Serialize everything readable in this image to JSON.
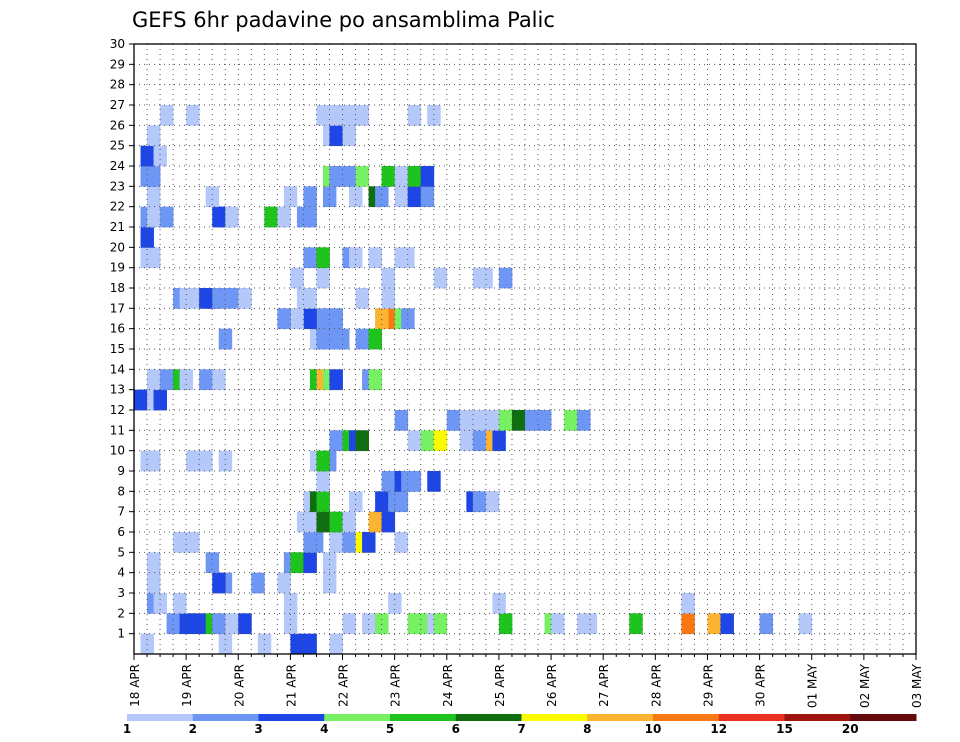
{
  "chart_data": {
    "type": "heatmap",
    "title": "GEFS 6hr padavine po ansamblima Palic",
    "x_tick_labels": [
      "18 APR",
      "19 APR",
      "20 APR",
      "21 APR",
      "22 APR",
      "23 APR",
      "24 APR",
      "25 APR",
      "26 APR",
      "27 APR",
      "28 APR",
      "29 APR",
      "30 APR",
      "01 MAY",
      "02 MAY",
      "03 MAY"
    ],
    "y_tick_labels": [
      "1",
      "2",
      "3",
      "4",
      "5",
      "6",
      "7",
      "8",
      "9",
      "10",
      "11",
      "12",
      "13",
      "14",
      "15",
      "16",
      "17",
      "18",
      "19",
      "20",
      "21",
      "22",
      "23",
      "24",
      "25",
      "26",
      "27",
      "28",
      "29",
      "30"
    ],
    "x_steps_per_label": 4,
    "y_range": [
      0,
      30
    ],
    "grid": true,
    "colorbar": {
      "labels": [
        "1",
        "2",
        "3",
        "4",
        "5",
        "6",
        "7",
        "8",
        "10",
        "12",
        "15",
        "20"
      ],
      "colors": [
        "#b4c8fa",
        "#6e96f5",
        "#1e46e6",
        "#78f064",
        "#1ec31e",
        "#0f6e0f",
        "#fafa00",
        "#fab432",
        "#fa7814",
        "#e6321e",
        "#a0140f",
        "#640a0a"
      ]
    },
    "cells": [
      [
        0.5,
        0,
        1
      ],
      [
        6.5,
        0,
        1
      ],
      [
        9.5,
        0,
        1
      ],
      [
        12,
        0,
        3
      ],
      [
        13,
        0,
        3
      ],
      [
        15,
        0,
        1
      ],
      [
        2.5,
        1,
        2
      ],
      [
        3.5,
        1,
        3
      ],
      [
        4.5,
        1,
        3
      ],
      [
        5.5,
        1,
        5
      ],
      [
        6,
        1,
        2
      ],
      [
        7,
        1,
        1
      ],
      [
        8,
        1,
        3
      ],
      [
        11.5,
        1,
        1
      ],
      [
        16,
        1,
        1
      ],
      [
        17.5,
        1,
        1
      ],
      [
        18.5,
        1,
        4
      ],
      [
        21,
        1,
        4
      ],
      [
        21.5,
        1,
        4
      ],
      [
        22,
        1,
        4
      ],
      [
        22.5,
        1,
        1
      ],
      [
        23,
        1,
        4
      ],
      [
        28,
        1,
        5
      ],
      [
        31.5,
        1,
        4
      ],
      [
        32,
        1,
        1
      ],
      [
        34,
        1,
        1
      ],
      [
        34.5,
        1,
        1
      ],
      [
        38,
        1,
        5
      ],
      [
        42,
        1,
        9
      ],
      [
        44,
        1,
        8
      ],
      [
        45,
        1,
        3
      ],
      [
        48,
        1,
        2
      ],
      [
        51,
        1,
        1
      ],
      [
        1,
        2,
        2
      ],
      [
        1.5,
        2,
        1
      ],
      [
        3,
        2,
        1
      ],
      [
        11.5,
        2,
        1
      ],
      [
        19.5,
        2,
        1
      ],
      [
        27.5,
        2,
        1
      ],
      [
        42,
        2,
        1
      ],
      [
        1,
        3,
        1
      ],
      [
        6.5,
        3,
        2
      ],
      [
        6,
        3,
        3
      ],
      [
        9,
        3,
        2
      ],
      [
        11,
        3,
        1
      ],
      [
        14.5,
        3,
        1
      ],
      [
        1,
        4,
        1
      ],
      [
        5.5,
        4,
        2
      ],
      [
        11.5,
        4,
        2
      ],
      [
        12,
        4,
        5
      ],
      [
        13,
        4,
        3
      ],
      [
        14.5,
        4,
        1
      ],
      [
        3,
        5,
        1
      ],
      [
        4,
        5,
        1
      ],
      [
        13,
        5,
        2
      ],
      [
        13.5,
        5,
        2
      ],
      [
        15,
        5,
        1
      ],
      [
        16,
        5,
        2
      ],
      [
        17,
        5,
        7
      ],
      [
        17.5,
        5,
        3
      ],
      [
        20,
        5,
        1
      ],
      [
        12.5,
        6,
        1
      ],
      [
        13.5,
        6,
        1
      ],
      [
        14,
        6,
        6
      ],
      [
        15,
        6,
        5
      ],
      [
        16,
        6,
        1
      ],
      [
        18,
        6,
        8
      ],
      [
        19,
        6,
        3
      ],
      [
        13,
        7,
        1
      ],
      [
        13.5,
        7,
        6
      ],
      [
        14,
        7,
        5
      ],
      [
        16.5,
        7,
        1
      ],
      [
        18.5,
        7,
        3
      ],
      [
        19.5,
        7,
        2
      ],
      [
        20,
        7,
        2
      ],
      [
        25.5,
        7,
        3
      ],
      [
        26,
        7,
        2
      ],
      [
        27,
        7,
        1
      ],
      [
        14,
        8,
        1
      ],
      [
        19,
        8,
        2
      ],
      [
        20,
        8,
        3
      ],
      [
        20.5,
        8,
        2
      ],
      [
        21,
        8,
        2
      ],
      [
        22.5,
        8,
        3
      ],
      [
        0.5,
        9,
        1
      ],
      [
        1,
        9,
        1
      ],
      [
        4,
        9,
        1
      ],
      [
        5,
        9,
        1
      ],
      [
        6.5,
        9,
        1
      ],
      [
        13.5,
        9,
        1
      ],
      [
        14.5,
        9,
        2
      ],
      [
        14,
        9,
        5
      ],
      [
        15,
        10,
        2
      ],
      [
        16,
        10,
        5
      ],
      [
        16.5,
        10,
        3
      ],
      [
        17,
        10,
        6
      ],
      [
        21,
        10,
        1
      ],
      [
        22,
        10,
        4
      ],
      [
        23,
        10,
        7
      ],
      [
        25,
        10,
        1
      ],
      [
        26,
        10,
        2
      ],
      [
        27,
        10,
        8
      ],
      [
        27.5,
        10,
        3
      ],
      [
        20,
        11,
        2
      ],
      [
        24,
        11,
        2
      ],
      [
        25,
        11,
        1
      ],
      [
        26,
        11,
        1
      ],
      [
        27,
        11,
        1
      ],
      [
        28,
        11,
        4
      ],
      [
        29,
        11,
        6
      ],
      [
        30,
        11,
        2
      ],
      [
        31,
        11,
        2
      ],
      [
        33,
        11,
        4
      ],
      [
        34,
        11,
        2
      ],
      [
        0,
        12,
        3
      ],
      [
        0.5,
        12,
        3
      ],
      [
        1,
        12,
        1
      ],
      [
        1.5,
        12,
        3
      ],
      [
        1,
        13,
        1
      ],
      [
        2,
        13,
        2
      ],
      [
        3,
        13,
        5
      ],
      [
        3.5,
        13,
        1
      ],
      [
        5,
        13,
        2
      ],
      [
        6,
        13,
        1
      ],
      [
        13.5,
        13,
        5
      ],
      [
        14,
        13,
        8
      ],
      [
        14.5,
        13,
        4
      ],
      [
        15,
        13,
        3
      ],
      [
        17.5,
        13,
        2
      ],
      [
        18,
        13,
        4
      ],
      [
        6.5,
        15,
        2
      ],
      [
        13.5,
        15,
        1
      ],
      [
        14.5,
        15,
        1
      ],
      [
        14,
        15,
        2
      ],
      [
        15,
        15,
        2
      ],
      [
        15.5,
        15,
        2
      ],
      [
        17,
        15,
        2
      ],
      [
        18,
        15,
        5
      ],
      [
        14.5,
        16,
        1
      ],
      [
        15,
        16,
        2
      ],
      [
        14,
        16,
        2
      ],
      [
        13,
        16,
        3
      ],
      [
        12,
        16,
        1
      ],
      [
        11,
        16,
        2
      ],
      [
        19,
        16,
        9
      ],
      [
        20,
        16,
        4
      ],
      [
        18.5,
        16,
        8
      ],
      [
        20.5,
        16,
        2
      ],
      [
        3,
        17,
        2
      ],
      [
        3.5,
        17,
        1
      ],
      [
        4,
        17,
        1
      ],
      [
        5,
        17,
        3
      ],
      [
        5.5,
        17,
        3
      ],
      [
        6,
        17,
        2
      ],
      [
        7,
        17,
        2
      ],
      [
        8,
        17,
        1
      ],
      [
        12.5,
        17,
        1
      ],
      [
        13,
        17,
        1
      ],
      [
        17,
        17,
        1
      ],
      [
        19,
        17,
        1
      ],
      [
        12,
        18,
        1
      ],
      [
        14,
        18,
        1
      ],
      [
        19,
        18,
        1
      ],
      [
        23,
        18,
        1
      ],
      [
        26,
        18,
        1
      ],
      [
        26.5,
        18,
        1
      ],
      [
        28,
        18,
        2
      ],
      [
        0.5,
        19,
        1
      ],
      [
        1,
        19,
        1
      ],
      [
        13,
        19,
        2
      ],
      [
        14,
        19,
        5
      ],
      [
        16,
        19,
        2
      ],
      [
        16.5,
        19,
        1
      ],
      [
        18,
        19,
        1
      ],
      [
        20,
        19,
        1
      ],
      [
        20.5,
        19,
        1
      ],
      [
        0.5,
        20,
        3
      ],
      [
        0.5,
        21,
        2
      ],
      [
        1,
        21,
        1
      ],
      [
        2,
        21,
        2
      ],
      [
        6,
        21,
        3
      ],
      [
        6.5,
        21,
        3
      ],
      [
        7,
        21,
        1
      ],
      [
        10,
        21,
        5
      ],
      [
        11,
        21,
        1
      ],
      [
        12.5,
        21,
        2
      ],
      [
        13,
        21,
        2
      ],
      [
        1,
        22,
        1
      ],
      [
        5.5,
        22,
        1
      ],
      [
        11.5,
        22,
        1
      ],
      [
        13,
        22,
        2
      ],
      [
        14.5,
        22,
        2
      ],
      [
        16.5,
        22,
        1
      ],
      [
        18,
        22,
        6
      ],
      [
        18.5,
        22,
        2
      ],
      [
        20,
        22,
        1
      ],
      [
        21,
        22,
        3
      ],
      [
        22,
        22,
        2
      ],
      [
        0.5,
        23,
        2
      ],
      [
        1,
        23,
        2
      ],
      [
        14.5,
        23,
        4
      ],
      [
        15,
        23,
        2
      ],
      [
        15.5,
        23,
        2
      ],
      [
        16,
        23,
        2
      ],
      [
        17,
        23,
        4
      ],
      [
        19,
        23,
        5
      ],
      [
        20,
        23,
        1
      ],
      [
        21,
        23,
        5
      ],
      [
        22,
        23,
        3
      ],
      [
        0.5,
        24,
        3
      ],
      [
        1,
        24,
        3
      ],
      [
        1.5,
        24,
        1
      ],
      [
        1,
        25,
        1
      ],
      [
        14.5,
        25,
        1
      ],
      [
        15,
        25,
        3
      ],
      [
        16,
        25,
        1
      ],
      [
        2,
        26,
        1
      ],
      [
        4,
        26,
        1
      ],
      [
        14,
        26,
        1
      ],
      [
        15,
        26,
        1
      ],
      [
        16,
        26,
        1
      ],
      [
        16.5,
        26,
        1
      ],
      [
        17,
        26,
        1
      ],
      [
        21,
        26,
        1
      ],
      [
        22.5,
        26,
        1
      ]
    ]
  }
}
